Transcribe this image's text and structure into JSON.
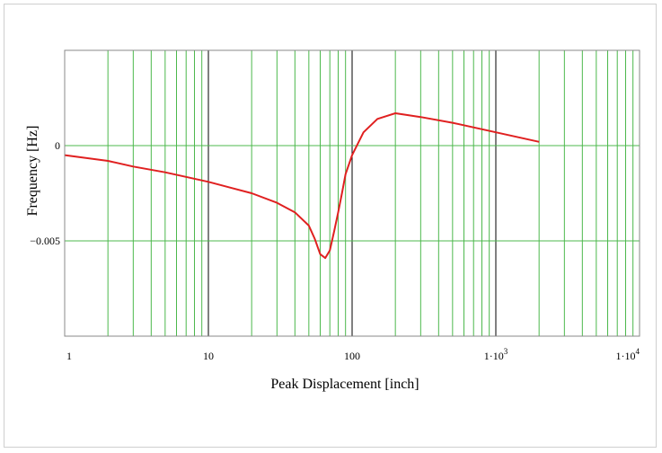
{
  "chart_data": {
    "type": "line",
    "title": "",
    "xlabel": "Peak Displacement [inch]",
    "ylabel": "Frequency [Hz]",
    "x_scale": "log",
    "xlim": [
      1,
      10000
    ],
    "ylim": [
      -0.01,
      0.005
    ],
    "grid": true,
    "legend": "none",
    "x_tick_labels": [
      {
        "value": 1,
        "base": "1"
      },
      {
        "value": 10,
        "base": "10"
      },
      {
        "value": 100,
        "base": "100"
      },
      {
        "value": 1000,
        "base": "1·10",
        "exp": "3"
      },
      {
        "value": 10000,
        "base": "1·10",
        "exp": "4"
      }
    ],
    "y_tick_labels": [
      {
        "value": 0,
        "label": "0"
      },
      {
        "value": -0.005,
        "label": "−0.005"
      }
    ],
    "colors": {
      "grid_minor": "#4cb84c",
      "grid_major": "#000000",
      "line": "#e02020"
    },
    "series": [
      {
        "color": "#e02020",
        "x": [
          1,
          2,
          3,
          5,
          10,
          20,
          30,
          40,
          50,
          55,
          60,
          65,
          70,
          75,
          80,
          85,
          90,
          100,
          120,
          150,
          200,
          300,
          500,
          1000,
          2000
        ],
        "y": [
          -0.0005,
          -0.0008,
          -0.0011,
          -0.0014,
          -0.0019,
          -0.0025,
          -0.003,
          -0.0035,
          -0.0042,
          -0.0049,
          -0.0057,
          -0.0059,
          -0.0055,
          -0.0045,
          -0.0035,
          -0.0025,
          -0.0015,
          -0.0005,
          0.0007,
          0.0014,
          0.0017,
          0.0015,
          0.0012,
          0.0007,
          0.0002
        ]
      }
    ]
  }
}
